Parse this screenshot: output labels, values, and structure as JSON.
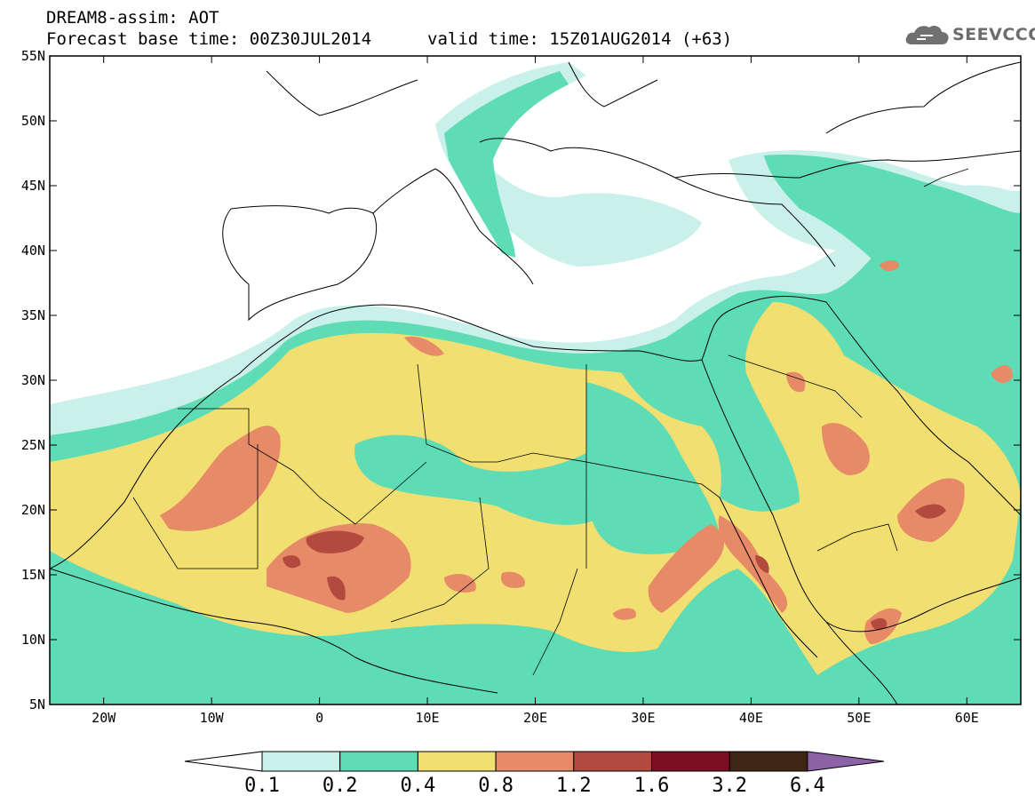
{
  "header": {
    "title": "DREAM8-assim: AOT",
    "base_time": "Forecast base time: 00Z30JUL2014",
    "valid_time": "valid time: 15Z01AUG2014 (+63)",
    "logo_text": "SEEVCCC"
  },
  "map": {
    "variable": "AOT",
    "lon_range": [
      -25,
      65
    ],
    "lat_range": [
      5,
      55
    ],
    "lat_ticks": [
      "55N",
      "50N",
      "45N",
      "40N",
      "35N",
      "30N",
      "25N",
      "20N",
      "15N",
      "10N",
      "5N"
    ],
    "lon_ticks": [
      "20W",
      "10W",
      "0",
      "10E",
      "20E",
      "30E",
      "40E",
      "50E",
      "60E"
    ]
  },
  "colorbar": {
    "levels": [
      "0.1",
      "0.2",
      "0.4",
      "0.8",
      "1.2",
      "1.6",
      "3.2",
      "6.4"
    ],
    "colors": [
      "#c9f1ea",
      "#5ddcb5",
      "#f2df72",
      "#e78a67",
      "#b34a40",
      "#7d0f25",
      "#3f2614",
      "#8e62a6"
    ]
  },
  "colors": {
    "c01": "#c9f1ea",
    "c02": "#5ddcb5",
    "c04": "#f2df72",
    "c08": "#e78a67",
    "c12": "#b34a40",
    "c16": "#7d0f25",
    "c32": "#3f2614"
  }
}
